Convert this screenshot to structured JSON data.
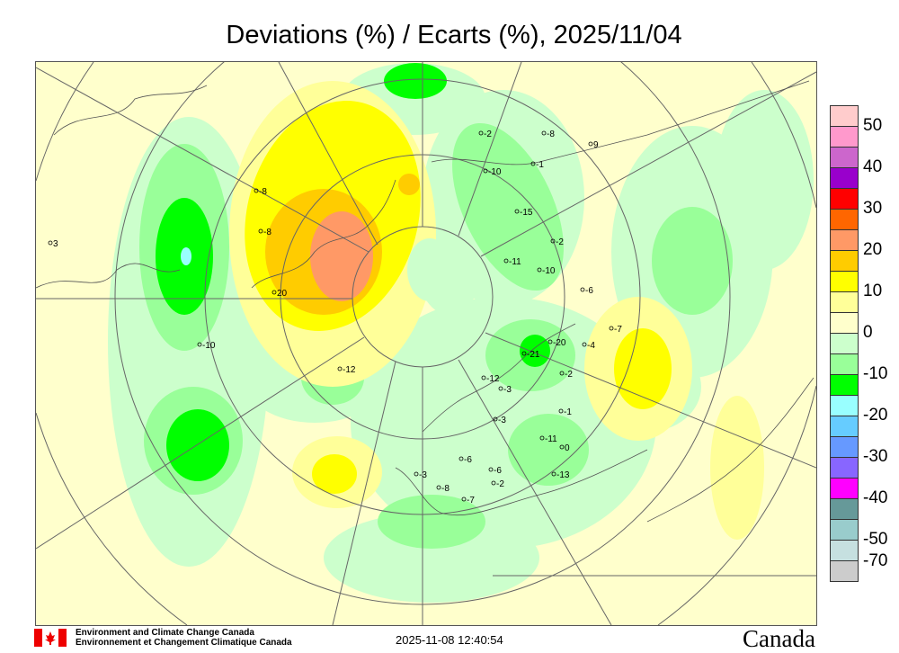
{
  "title": "Deviations (%) / Ecarts (%), 2025/11/04",
  "legend": {
    "colors": [
      "#ffcccc",
      "#ff99cc",
      "#cc66cc",
      "#9900cc",
      "#ff0000",
      "#ff6600",
      "#ff9966",
      "#ffcc00",
      "#ffff00",
      "#ffff99",
      "#ffffcc",
      "#ccffcc",
      "#99ff99",
      "#00ff00",
      "#99ffff",
      "#66ccff",
      "#6699ff",
      "#8866ff",
      "#ff00ff",
      "#669999",
      "#99cccc",
      "#c6e0e0",
      "#cccccc"
    ],
    "labels": [
      "50",
      "40",
      "30",
      "20",
      "10",
      "0",
      "-10",
      "-20",
      "-30",
      "-40",
      "-50",
      "-70"
    ]
  },
  "stations": [
    {
      "v": "-2"
    },
    {
      "v": "-8"
    },
    {
      "v": "9"
    },
    {
      "v": "-1"
    },
    {
      "v": "-10"
    },
    {
      "v": "-15"
    },
    {
      "v": "-2"
    },
    {
      "v": "-11"
    },
    {
      "v": "-10"
    },
    {
      "v": "-6"
    },
    {
      "v": "-7"
    },
    {
      "v": "-20"
    },
    {
      "v": "-21"
    },
    {
      "v": "-4"
    },
    {
      "v": "-2"
    },
    {
      "v": "-12"
    },
    {
      "v": "-12"
    },
    {
      "v": "-3"
    },
    {
      "v": "-1"
    },
    {
      "v": "-3"
    },
    {
      "v": "-11"
    },
    {
      "v": "0"
    },
    {
      "v": "-6"
    },
    {
      "v": "-6"
    },
    {
      "v": "-3"
    },
    {
      "v": "-2"
    },
    {
      "v": "-13"
    },
    {
      "v": "-8"
    },
    {
      "v": "-7"
    },
    {
      "v": "-8"
    },
    {
      "v": "20"
    },
    {
      "v": "-10"
    },
    {
      "v": "3"
    },
    {
      "v": "-8"
    }
  ],
  "footer": {
    "org_en": "Environment and Climate Change Canada",
    "org_fr": "Environnement et Changement Climatique Canada",
    "timestamp": "2025-11-08 12:40:54",
    "wordmark": "Canada"
  }
}
